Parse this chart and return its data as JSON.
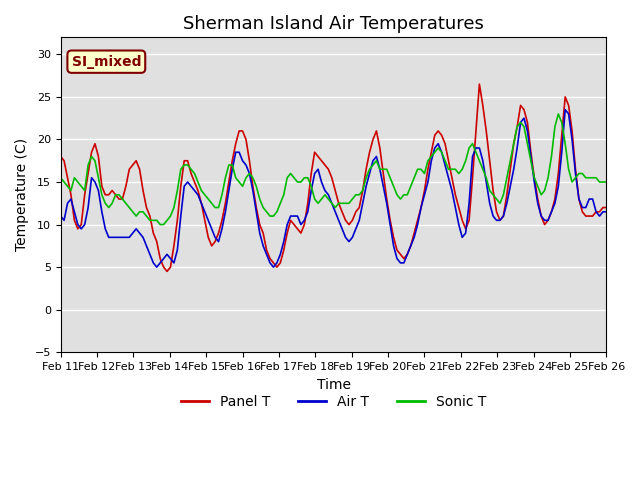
{
  "title": "Sherman Island Air Temperatures",
  "xlabel": "Time",
  "ylabel": "Temperature (C)",
  "ylim": [
    -5,
    32
  ],
  "yticks": [
    -5,
    0,
    5,
    10,
    15,
    20,
    25,
    30
  ],
  "x_tick_labels": [
    "Feb 11",
    "Feb 12",
    "Feb 13",
    "Feb 14",
    "Feb 15",
    "Feb 16",
    "Feb 17",
    "Feb 18",
    "Feb 19",
    "Feb 20",
    "Feb 21",
    "Feb 22",
    "Feb 23",
    "Feb 24",
    "Feb 25",
    "Feb 26"
  ],
  "color_panel": "#cc0000",
  "color_air": "#0000cc",
  "color_sonic": "#00bb00",
  "legend_label_panel": "Panel T",
  "legend_label_air": "Air T",
  "legend_label_sonic": "Sonic T",
  "annotation_text": "SI_mixed",
  "annotation_color": "#800000",
  "annotation_bg": "#ffffcc",
  "background_color": "#e0e0e0",
  "title_fontsize": 13,
  "axis_fontsize": 10,
  "tick_fontsize": 8,
  "linewidth": 1.2,
  "panel_T": [
    18.0,
    17.5,
    15.5,
    13.5,
    10.5,
    9.5,
    10.0,
    13.5,
    16.0,
    18.5,
    19.5,
    18.0,
    14.5,
    13.5,
    13.5,
    14.0,
    13.5,
    13.0,
    13.0,
    14.5,
    16.5,
    17.0,
    17.5,
    16.5,
    14.0,
    12.0,
    11.0,
    9.0,
    8.0,
    6.0,
    5.0,
    4.5,
    5.0,
    7.5,
    10.5,
    14.5,
    17.5,
    17.5,
    16.0,
    15.0,
    14.0,
    12.5,
    10.5,
    8.5,
    7.5,
    8.0,
    9.0,
    10.5,
    12.5,
    15.0,
    17.5,
    19.5,
    21.0,
    21.0,
    20.0,
    17.5,
    14.5,
    12.0,
    10.0,
    9.0,
    7.0,
    6.0,
    5.5,
    5.0,
    5.5,
    7.0,
    9.0,
    10.5,
    10.0,
    9.5,
    9.0,
    10.0,
    12.5,
    16.0,
    18.5,
    18.0,
    17.5,
    17.0,
    16.5,
    15.5,
    14.0,
    12.5,
    11.5,
    10.5,
    10.0,
    10.5,
    11.5,
    12.0,
    14.0,
    16.5,
    18.5,
    20.0,
    21.0,
    19.0,
    16.0,
    13.0,
    10.5,
    8.5,
    7.0,
    6.5,
    6.0,
    6.5,
    7.5,
    9.0,
    10.5,
    12.0,
    14.0,
    16.5,
    18.5,
    20.5,
    21.0,
    20.5,
    19.5,
    17.5,
    15.5,
    13.5,
    12.0,
    10.5,
    9.5,
    10.5,
    15.5,
    21.0,
    26.5,
    24.0,
    21.0,
    17.5,
    14.0,
    11.5,
    10.5,
    11.0,
    13.5,
    16.5,
    19.5,
    21.5,
    24.0,
    23.5,
    22.0,
    18.5,
    15.5,
    13.0,
    11.0,
    10.0,
    10.5,
    11.5,
    13.0,
    16.0,
    20.5,
    25.0,
    24.0,
    21.0,
    16.5,
    13.0,
    11.5,
    11.0,
    11.0,
    11.0,
    11.5,
    11.5,
    12.0,
    12.0
  ],
  "air_T": [
    11.0,
    10.5,
    12.5,
    13.0,
    11.5,
    10.0,
    9.5,
    10.0,
    12.0,
    15.5,
    15.0,
    14.0,
    11.5,
    9.5,
    8.5,
    8.5,
    8.5,
    8.5,
    8.5,
    8.5,
    8.5,
    9.0,
    9.5,
    9.0,
    8.5,
    7.5,
    6.5,
    5.5,
    5.0,
    5.5,
    6.0,
    6.5,
    6.0,
    5.5,
    7.0,
    11.0,
    14.5,
    15.0,
    14.5,
    14.0,
    13.5,
    12.5,
    11.5,
    10.5,
    9.5,
    8.5,
    8.0,
    9.5,
    11.5,
    14.0,
    16.5,
    18.5,
    18.5,
    17.5,
    17.0,
    16.0,
    14.0,
    11.5,
    9.0,
    7.5,
    6.5,
    5.5,
    5.0,
    5.5,
    6.5,
    8.0,
    10.0,
    11.0,
    11.0,
    11.0,
    10.0,
    10.5,
    11.5,
    14.0,
    16.0,
    16.5,
    15.0,
    14.0,
    13.5,
    12.5,
    11.5,
    10.5,
    9.5,
    8.5,
    8.0,
    8.5,
    9.5,
    10.5,
    12.5,
    14.5,
    16.0,
    17.5,
    18.0,
    16.5,
    14.5,
    12.5,
    10.0,
    7.5,
    6.0,
    5.5,
    5.5,
    6.5,
    7.5,
    8.5,
    10.0,
    12.0,
    13.5,
    15.0,
    17.5,
    19.0,
    19.5,
    18.5,
    17.0,
    15.5,
    14.0,
    12.0,
    10.0,
    8.5,
    9.0,
    12.5,
    18.0,
    19.0,
    19.0,
    17.5,
    15.0,
    12.5,
    11.0,
    10.5,
    10.5,
    11.0,
    12.5,
    14.5,
    16.5,
    19.0,
    22.0,
    22.5,
    21.0,
    18.0,
    15.0,
    12.5,
    11.0,
    10.5,
    10.5,
    11.5,
    12.5,
    14.5,
    18.5,
    23.5,
    23.0,
    20.0,
    16.0,
    13.0,
    12.0,
    12.0,
    13.0,
    13.0,
    11.5,
    11.0,
    11.5,
    11.5
  ],
  "sonic_T": [
    15.5,
    15.0,
    14.5,
    14.0,
    15.5,
    15.0,
    14.5,
    14.0,
    17.0,
    18.0,
    17.5,
    15.5,
    13.5,
    12.5,
    12.0,
    12.5,
    13.5,
    13.5,
    13.0,
    12.5,
    12.0,
    11.5,
    11.0,
    11.5,
    11.5,
    11.0,
    10.5,
    10.5,
    10.5,
    10.0,
    10.0,
    10.5,
    11.0,
    12.0,
    14.0,
    16.5,
    17.0,
    17.0,
    16.5,
    16.0,
    15.0,
    14.0,
    13.5,
    13.0,
    12.5,
    12.0,
    12.0,
    13.5,
    15.5,
    17.0,
    17.0,
    15.5,
    15.0,
    14.5,
    15.5,
    16.0,
    15.5,
    14.5,
    13.0,
    12.0,
    11.5,
    11.0,
    11.0,
    11.5,
    12.5,
    13.5,
    15.5,
    16.0,
    15.5,
    15.0,
    15.0,
    15.5,
    15.5,
    14.5,
    13.0,
    12.5,
    13.0,
    13.5,
    13.0,
    12.5,
    12.0,
    12.5,
    12.5,
    12.5,
    12.5,
    13.0,
    13.5,
    13.5,
    14.0,
    15.5,
    16.5,
    17.0,
    17.5,
    16.5,
    16.5,
    16.5,
    15.5,
    14.5,
    13.5,
    13.0,
    13.5,
    13.5,
    14.5,
    15.5,
    16.5,
    16.5,
    16.0,
    17.5,
    18.0,
    18.5,
    19.0,
    18.5,
    17.5,
    16.5,
    16.5,
    16.5,
    16.0,
    16.5,
    17.5,
    19.0,
    19.5,
    18.5,
    17.5,
    16.5,
    15.5,
    14.0,
    13.5,
    13.0,
    12.5,
    13.5,
    15.5,
    17.5,
    19.5,
    21.5,
    22.0,
    21.5,
    19.5,
    17.5,
    15.5,
    14.5,
    13.5,
    14.0,
    15.5,
    18.0,
    21.5,
    23.0,
    22.0,
    19.5,
    16.5,
    15.0,
    15.5,
    16.0,
    16.0,
    15.5,
    15.5,
    15.5,
    15.5,
    15.0,
    15.0,
    15.0
  ]
}
